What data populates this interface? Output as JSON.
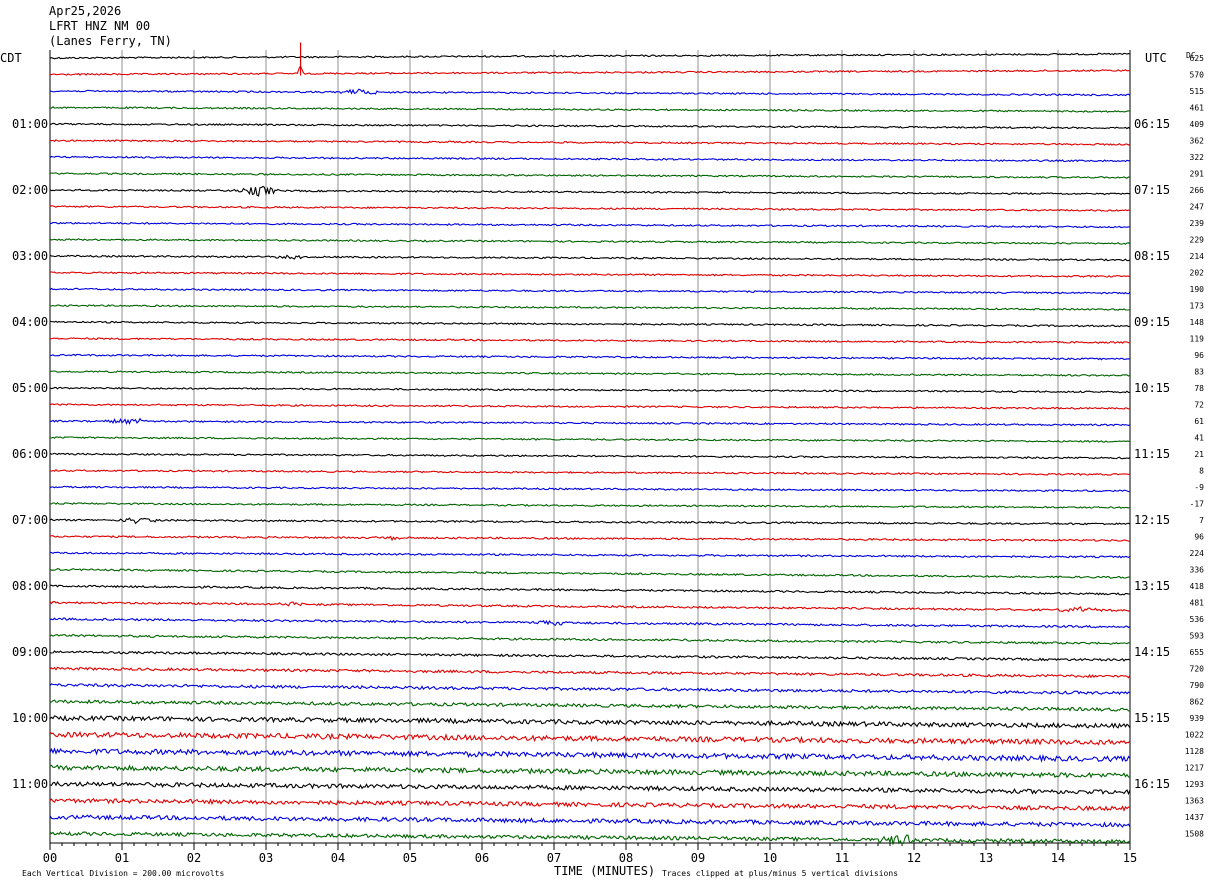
{
  "header": {
    "date": "Apr25,2026",
    "station": "LFRT HNZ NM 00",
    "location": "(Lanes Ferry, TN)"
  },
  "chart_data": {
    "type": "line",
    "title": "",
    "left_timezone": "CDT",
    "right_timezone": "UTC",
    "dc_label": "DC",
    "xlabel": "TIME (MINUTES)",
    "xlim": [
      0,
      15
    ],
    "x_ticks": [
      "00",
      "01",
      "02",
      "03",
      "04",
      "05",
      "06",
      "07",
      "08",
      "09",
      "10",
      "11",
      "12",
      "13",
      "14",
      "15"
    ],
    "left_hour_labels": [
      "01:00",
      "02:00",
      "03:00",
      "04:00",
      "05:00",
      "06:00",
      "07:00",
      "08:00",
      "09:00",
      "10:00",
      "11:00"
    ],
    "right_hour_labels": [
      "06:15",
      "07:15",
      "08:15",
      "09:15",
      "10:15",
      "11:15",
      "12:15",
      "13:15",
      "14:15",
      "15:15",
      "16:15"
    ],
    "trace_colors": [
      "#000000",
      "#e00000",
      "#0000e0",
      "#006400"
    ],
    "dc_offsets": [
      625,
      570,
      515,
      461,
      409,
      362,
      322,
      291,
      266,
      247,
      239,
      229,
      214,
      202,
      190,
      173,
      148,
      119,
      96,
      83,
      78,
      72,
      61,
      41,
      21,
      8,
      -9,
      -17,
      7,
      96,
      224,
      336,
      418,
      481,
      536,
      593,
      655,
      720,
      790,
      862,
      939,
      1022,
      1128,
      1217,
      1293,
      1363,
      1437,
      1508
    ],
    "noise_levels": [
      1,
      1,
      1,
      1,
      1,
      1,
      1,
      1,
      1,
      1,
      1,
      1,
      1,
      1,
      1,
      1,
      1,
      1,
      1,
      1,
      1,
      1,
      1,
      1,
      1,
      1,
      1,
      1,
      1.1,
      1.1,
      1.1,
      1.1,
      1.2,
      1.2,
      1.3,
      1.3,
      1.4,
      1.6,
      1.8,
      2,
      2.8,
      3.2,
      3.2,
      3,
      2.7,
      2.6,
      2.6,
      2.2
    ],
    "events": [
      {
        "trace": 1,
        "minute": 3.48,
        "amplitude": 18,
        "type": "spike"
      },
      {
        "trace": 2,
        "minute": 4.3,
        "amplitude": 3
      },
      {
        "trace": 8,
        "minute": 2.9,
        "amplitude": 5
      },
      {
        "trace": 12,
        "minute": 3.4,
        "amplitude": 2
      },
      {
        "trace": 22,
        "minute": 1.1,
        "amplitude": 3
      },
      {
        "trace": 28,
        "minute": 1.2,
        "amplitude": 3
      },
      {
        "trace": 29,
        "minute": 4.8,
        "amplitude": 2
      },
      {
        "trace": 33,
        "minute": 3.3,
        "amplitude": 3
      },
      {
        "trace": 33,
        "minute": 14.3,
        "amplitude": 3
      },
      {
        "trace": 34,
        "minute": 6.9,
        "amplitude": 3
      },
      {
        "trace": 47,
        "minute": 11.8,
        "amplitude": 6
      }
    ],
    "footer_left": "Each Vertical Division =  200.00 microvolts",
    "footer_right": "Traces clipped at plus/minus 5 vertical divisions"
  }
}
